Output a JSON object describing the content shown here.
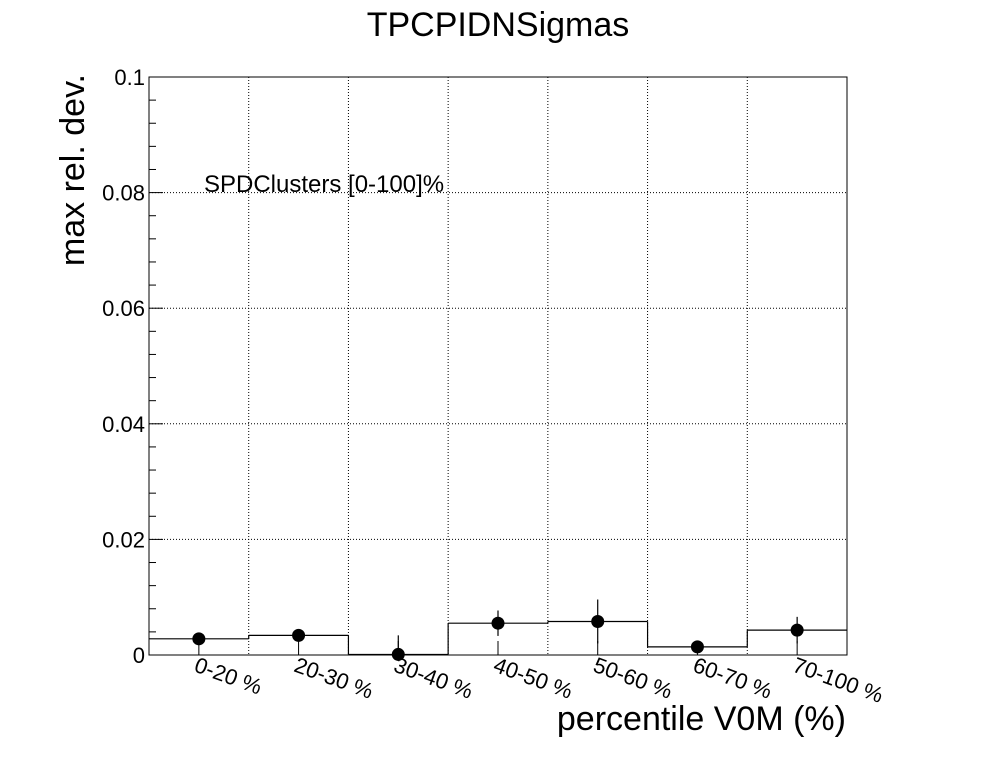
{
  "chart_data": {
    "type": "scatter",
    "title": "TPCPIDNSigmas",
    "xlabel": "percentile V0M (%)",
    "ylabel": "max rel. dev.",
    "annotation": "SPDClusters [0-100]%",
    "categories": [
      "0-20 %",
      "20-30 %",
      "30-40 %",
      "40-50 %",
      "50-60 %",
      "60-70 %",
      "70-100 %"
    ],
    "values": [
      0.0028,
      0.0034,
      0.0001,
      0.0055,
      0.0058,
      0.0014,
      0.0043
    ],
    "errors": [
      0.0006,
      0.0006,
      0.0033,
      0.0022,
      0.0038,
      0.0007,
      0.0023
    ],
    "ylim": [
      0,
      0.1
    ],
    "yticks": [
      "0",
      "0.02",
      "0.04",
      "0.06",
      "0.08",
      "0.1"
    ],
    "grid": true,
    "colors": {
      "markers": "#000000",
      "grid": "#000000",
      "frame": "#000000"
    }
  }
}
